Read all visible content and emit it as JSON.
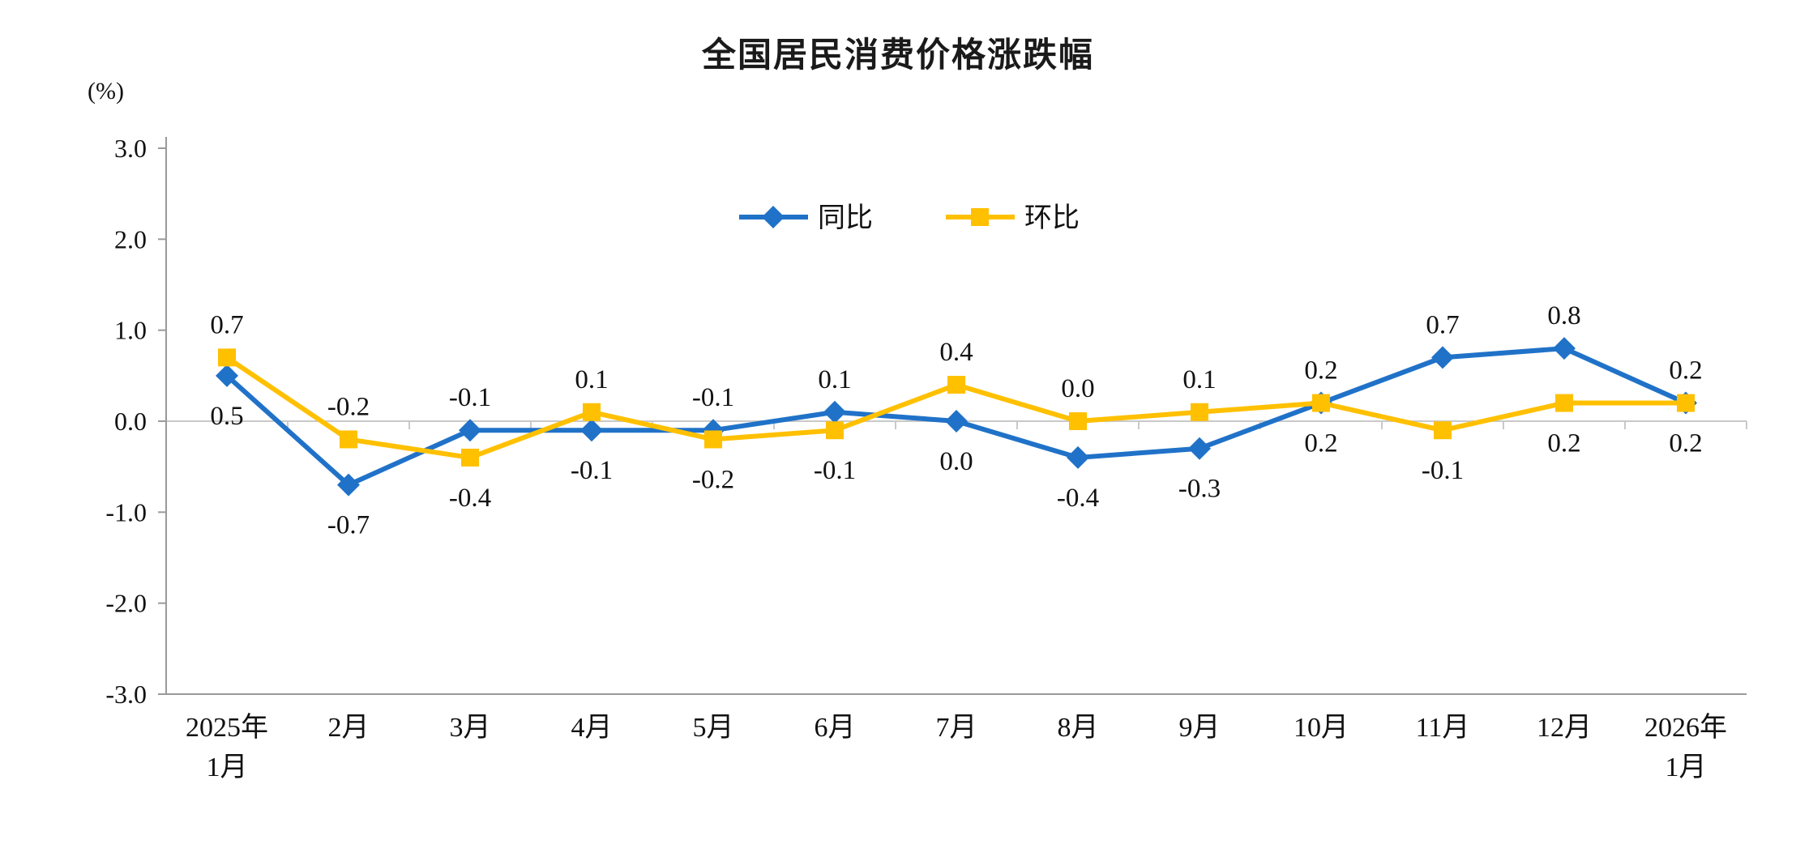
{
  "chart_data": {
    "type": "line",
    "title": "全国居民消费价格涨跌幅",
    "ylabel": "(%)",
    "ylim": [
      -3,
      3
    ],
    "yticks": [
      3.0,
      2.0,
      1.0,
      0.0,
      -1.0,
      -2.0,
      -3.0
    ],
    "grid": "zero-line-only",
    "legend_position": "top-center-inside",
    "categories": [
      "2025年\n1月",
      "2月",
      "3月",
      "4月",
      "5月",
      "6月",
      "7月",
      "8月",
      "9月",
      "10月",
      "11月",
      "12月",
      "2026年\n1月"
    ],
    "series": [
      {
        "id": "tongbi",
        "name": "同比",
        "marker": "diamond",
        "color": "#2072C8",
        "values": [
          0.5,
          -0.7,
          -0.1,
          -0.1,
          -0.1,
          0.1,
          0.0,
          -0.4,
          -0.3,
          0.2,
          0.7,
          0.8,
          0.2
        ],
        "label_side": [
          "below",
          "below",
          "above",
          "below",
          "above",
          "above",
          "below",
          "below",
          "below",
          "above",
          "above",
          "above",
          "above"
        ]
      },
      {
        "id": "huanbi",
        "name": "环比",
        "marker": "square",
        "color": "#FFC000",
        "values": [
          0.7,
          -0.2,
          -0.4,
          0.1,
          -0.2,
          -0.1,
          0.4,
          0.0,
          0.1,
          0.2,
          -0.1,
          0.2,
          0.2
        ],
        "label_side": [
          "above",
          "above",
          "below",
          "above",
          "below",
          "below",
          "above",
          "above",
          "above",
          "below",
          "below",
          "below",
          "below"
        ]
      }
    ],
    "colors": {
      "axis": "#9a9a9a",
      "zero_line": "#c9c9c9",
      "text": "#111111"
    }
  }
}
